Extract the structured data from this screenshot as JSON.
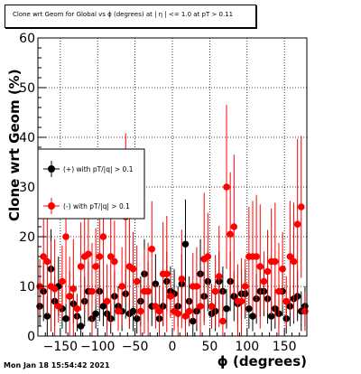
{
  "header": {
    "title": "Clone wrt Geom for Global vs ϕ (degrees) at | η | <= 1.0 at pT > 0.11"
  },
  "footer": {
    "timestamp": "Mon Jan 18 15:54:42 2021"
  },
  "chart_data": {
    "type": "scatter",
    "title": "Clone wrt Geom for Global vs ϕ (degrees) at | η | <= 1.0 at pT > 0.11",
    "xlabel": "ϕ (degrees)",
    "ylabel": "Clone wrt Geom (%)",
    "xlim": [
      -180,
      180
    ],
    "ylim": [
      0,
      60
    ],
    "xticks": [
      -150,
      -100,
      -50,
      0,
      50,
      100,
      150
    ],
    "yticks": [
      0,
      10,
      20,
      30,
      40,
      50,
      60
    ],
    "grid": true,
    "legend_position": "middle-left",
    "series": [
      {
        "name": "(+) with pT/|q| > 0.1",
        "color": "#000000",
        "x": [
          -177.5,
          -172.5,
          -167.5,
          -162.5,
          -157.5,
          -152.5,
          -147.5,
          -142.5,
          -137.5,
          -132.5,
          -127.5,
          -122.5,
          -117.5,
          -112.5,
          -107.5,
          -102.5,
          -97.5,
          -92.5,
          -87.5,
          -82.5,
          -77.5,
          -72.5,
          -67.5,
          -62.5,
          -57.5,
          -52.5,
          -47.5,
          -42.5,
          -37.5,
          -32.5,
          -27.5,
          -22.5,
          -17.5,
          -12.5,
          -7.5,
          -2.5,
          2.5,
          7.5,
          12.5,
          17.5,
          22.5,
          27.5,
          32.5,
          37.5,
          42.5,
          47.5,
          52.5,
          57.5,
          62.5,
          67.5,
          72.5,
          77.5,
          82.5,
          87.5,
          92.5,
          97.5,
          102.5,
          107.5,
          112.5,
          117.5,
          122.5,
          127.5,
          132.5,
          137.5,
          142.5,
          147.5,
          152.5,
          157.5,
          162.5,
          167.5,
          172.5,
          177.5
        ],
        "y": [
          6,
          9,
          4,
          13.5,
          7,
          10,
          5.5,
          3.5,
          8,
          6.5,
          4,
          2,
          7,
          9,
          3.5,
          4.5,
          9,
          6,
          4.5,
          3.5,
          8,
          6,
          5,
          8.5,
          4.5,
          5,
          3.5,
          7,
          12.5,
          9,
          6,
          10.5,
          3.5,
          6,
          11,
          9,
          8.5,
          6,
          10.5,
          18.5,
          7,
          3,
          5,
          12.5,
          8,
          11,
          4.5,
          5,
          11,
          9,
          5.5,
          11,
          8,
          6.5,
          8.5,
          8.5,
          5.5,
          4,
          7.5,
          9,
          9,
          7.5,
          4,
          5.5,
          4.5,
          9,
          3.5,
          6,
          7.5,
          8,
          5,
          6
        ],
        "err": [
          4,
          6,
          4,
          8,
          5,
          6,
          4,
          3,
          5,
          4,
          3,
          2,
          5,
          6,
          3,
          3,
          6,
          4,
          3,
          3,
          5,
          4,
          4,
          5,
          3,
          4,
          3,
          5,
          7,
          6,
          4,
          6,
          3,
          4,
          6,
          5,
          5,
          4,
          6,
          9,
          5,
          3,
          4,
          7,
          5,
          6,
          3,
          4,
          6,
          5,
          4,
          6,
          5,
          4,
          5,
          5,
          4,
          3,
          5,
          5,
          5,
          5,
          3,
          4,
          3,
          5,
          3,
          4,
          5,
          5,
          4,
          4
        ]
      },
      {
        "name": "(-) with pT/|q| > 0.1",
        "color": "#ff0000",
        "x": [
          -177.5,
          -172.5,
          -167.5,
          -162.5,
          -157.5,
          -152.5,
          -147.5,
          -142.5,
          -137.5,
          -132.5,
          -127.5,
          -122.5,
          -117.5,
          -112.5,
          -107.5,
          -102.5,
          -97.5,
          -92.5,
          -87.5,
          -82.5,
          -77.5,
          -72.5,
          -67.5,
          -62.5,
          -57.5,
          -52.5,
          -47.5,
          -42.5,
          -37.5,
          -32.5,
          -27.5,
          -22.5,
          -17.5,
          -12.5,
          -7.5,
          -2.5,
          2.5,
          7.5,
          12.5,
          17.5,
          22.5,
          27.5,
          32.5,
          37.5,
          42.5,
          47.5,
          52.5,
          57.5,
          62.5,
          67.5,
          72.5,
          77.5,
          82.5,
          87.5,
          92.5,
          97.5,
          102.5,
          107.5,
          112.5,
          117.5,
          122.5,
          127.5,
          132.5,
          137.5,
          142.5,
          147.5,
          152.5,
          157.5,
          162.5,
          167.5,
          172.5,
          177.5
        ],
        "y": [
          10,
          16,
          15,
          10,
          9.5,
          6,
          11,
          20,
          8,
          9.5,
          5.5,
          14,
          16,
          16.5,
          9,
          14,
          16,
          20,
          7,
          16,
          15,
          5,
          10,
          24,
          14,
          13.5,
          11,
          5,
          9,
          9,
          17.5,
          6,
          5,
          12.5,
          12.5,
          8,
          5,
          4.5,
          11.5,
          4,
          5,
          10,
          10,
          6,
          15.5,
          16,
          6,
          9,
          12,
          3,
          30,
          20.5,
          22,
          7,
          7,
          10,
          16,
          16,
          16,
          14,
          11,
          13,
          15,
          15,
          9,
          13.5,
          7,
          16,
          15,
          22.5,
          26,
          5
        ]
      }
    ]
  }
}
